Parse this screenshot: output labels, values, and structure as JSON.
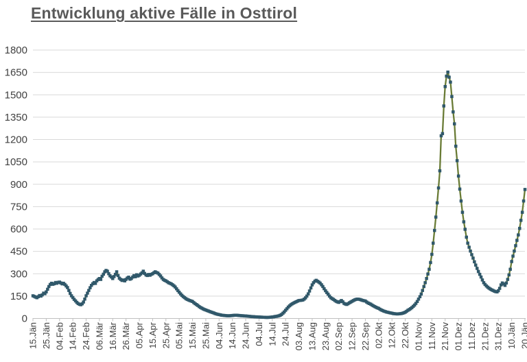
{
  "page": {
    "background": "#ffffff"
  },
  "header": {
    "title": "Entwicklung aktive Fälle in Osttirol",
    "title_color": "#595959"
  },
  "chart_data": {
    "type": "line",
    "title": "Entwicklung aktive Fälle in Osttirol",
    "xlabel": "",
    "ylabel": "",
    "ylim": [
      0,
      1800
    ],
    "y_ticks": [
      0,
      150,
      300,
      450,
      600,
      750,
      900,
      1050,
      1200,
      1350,
      1500,
      1650,
      1800
    ],
    "x_tick_labels": [
      "15.Jän",
      "25.Jän",
      "04.Feb",
      "14.Feb",
      "24.Feb",
      "06.Mär",
      "16.Mär",
      "26.Mär",
      "05.Apr",
      "15.Apr",
      "25.Apr",
      "05.Mai",
      "15.Mai",
      "25.Mai",
      "04.Jun",
      "14.Jun",
      "24.Jun",
      "04.Jul",
      "14.Jul",
      "24.Jul",
      "03.Aug",
      "13.Aug",
      "23.Aug",
      "02.Sep",
      "12.Sep",
      "22.Sep",
      "02.Okt",
      "12.Okt",
      "22.Okt",
      "01.Nov",
      "11.Nov",
      "21.Nov",
      "01.Dez",
      "11.Dez",
      "21.Dez",
      "31.Dez",
      "10.Jän",
      "20.Jän"
    ],
    "x_days_per_tick": 10,
    "grid": "horizontal-only",
    "legend": "none",
    "axis_label_color": "#404040",
    "gridline_color": "#d9d9d9",
    "axis_line_color": "#bfbfbf",
    "series": [
      {
        "marker": "square",
        "line_color": "#697b35",
        "marker_color": "#30586a",
        "x_start_label": "15.Jän",
        "x_end_label": "20.Jän",
        "sampling": "daily",
        "values": [
          152,
          148,
          143,
          139,
          146,
          154,
          150,
          158,
          170,
          166,
          178,
          196,
          214,
          228,
          236,
          229,
          233,
          241,
          236,
          242,
          244,
          238,
          232,
          236,
          228,
          218,
          207,
          188,
          168,
          152,
          140,
          128,
          118,
          108,
          100,
          95,
          92,
          98,
          110,
          130,
          152,
          170,
          188,
          206,
          222,
          233,
          241,
          235,
          252,
          261,
          268,
          262,
          283,
          297,
          313,
          322,
          317,
          300,
          286,
          278,
          268,
          281,
          296,
          313,
          288,
          270,
          262,
          255,
          258,
          252,
          262,
          271,
          277,
          263,
          268,
          278,
          287,
          280,
          293,
          285,
          290,
          298,
          306,
          317,
          302,
          292,
          288,
          295,
          290,
          296,
          300,
          307,
          313,
          308,
          304,
          295,
          285,
          272,
          262,
          256,
          252,
          246,
          240,
          236,
          232,
          226,
          219,
          211,
          199,
          187,
          176,
          165,
          155,
          147,
          140,
          133,
          128,
          124,
          120,
          117,
          114,
          106,
          99,
          93,
          87,
          80,
          74,
          69,
          64,
          60,
          57,
          53,
          50,
          46,
          43,
          40,
          37,
          33,
          30,
          28,
          26,
          24,
          22,
          21,
          20,
          19,
          18,
          18,
          18,
          19,
          20,
          21,
          22,
          22,
          21,
          20,
          19,
          18,
          18,
          17,
          17,
          16,
          15,
          14,
          13,
          12,
          12,
          11,
          11,
          10,
          10,
          9,
          9,
          8,
          8,
          7,
          7,
          7,
          8,
          9,
          10,
          11,
          13,
          14,
          16,
          18,
          22,
          27,
          35,
          44,
          55,
          65,
          76,
          85,
          92,
          98,
          103,
          108,
          112,
          116,
          120,
          121,
          122,
          124,
          130,
          138,
          150,
          165,
          184,
          205,
          225,
          240,
          250,
          256,
          250,
          244,
          237,
          226,
          214,
          200,
          186,
          174,
          163,
          150,
          139,
          133,
          128,
          121,
          115,
          111,
          108,
          114,
          120,
          112,
          101,
          97,
          94,
          99,
          105,
          110,
          115,
          120,
          125,
          128,
          130,
          129,
          127,
          124,
          121,
          119,
          117,
          110,
          104,
          100,
          96,
          90,
          85,
          80,
          75,
          71,
          68,
          62,
          57,
          53,
          49,
          46,
          43,
          41,
          39,
          37,
          35,
          33,
          32,
          31,
          30,
          31,
          32,
          33,
          35,
          38,
          42,
          48,
          55,
          60,
          66,
          73,
          81,
          90,
          101,
          114,
          130,
          146,
          164,
          188,
          214,
          240,
          268,
          298,
          330,
          375,
          430,
          505,
          590,
          680,
          775,
          875,
          990,
          1225,
          1240,
          1425,
          1555,
          1625,
          1652,
          1618,
          1585,
          1488,
          1385,
          1305,
          1155,
          1058,
          955,
          868,
          788,
          712,
          648,
          598,
          545,
          505,
          478,
          452,
          428,
          405,
          380,
          358,
          336,
          315,
          296,
          278,
          258,
          240,
          228,
          218,
          210,
          203,
          197,
          192,
          188,
          183,
          180,
          178,
          186,
          202,
          225,
          238,
          231,
          222,
          238,
          262,
          292,
          330,
          382,
          418,
          452,
          488,
          524,
          560,
          604,
          658,
          712,
          788,
          865
        ]
      }
    ]
  }
}
